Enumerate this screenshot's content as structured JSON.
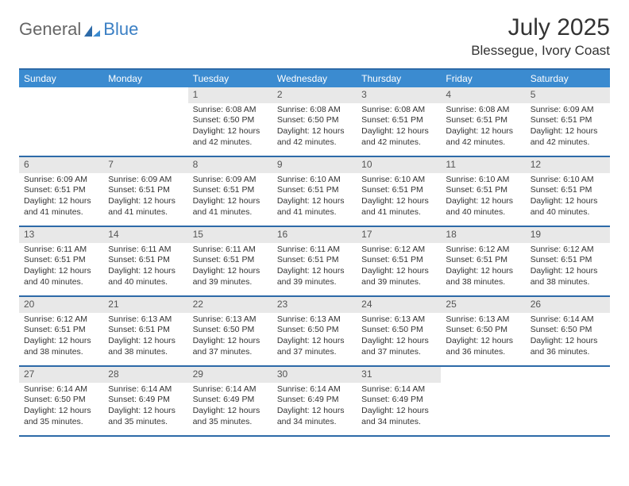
{
  "brand": {
    "part1": "General",
    "part2": "Blue"
  },
  "title": "July 2025",
  "location": "Blessegue, Ivory Coast",
  "colors": {
    "header_bg": "#3b8bd0",
    "border": "#2d6aa8",
    "daynum_bg": "#e8e8e8"
  },
  "day_names": [
    "Sunday",
    "Monday",
    "Tuesday",
    "Wednesday",
    "Thursday",
    "Friday",
    "Saturday"
  ],
  "weeks": [
    [
      null,
      null,
      {
        "d": "1",
        "sr": "Sunrise: 6:08 AM",
        "ss": "Sunset: 6:50 PM",
        "dl": "Daylight: 12 hours and 42 minutes."
      },
      {
        "d": "2",
        "sr": "Sunrise: 6:08 AM",
        "ss": "Sunset: 6:50 PM",
        "dl": "Daylight: 12 hours and 42 minutes."
      },
      {
        "d": "3",
        "sr": "Sunrise: 6:08 AM",
        "ss": "Sunset: 6:51 PM",
        "dl": "Daylight: 12 hours and 42 minutes."
      },
      {
        "d": "4",
        "sr": "Sunrise: 6:08 AM",
        "ss": "Sunset: 6:51 PM",
        "dl": "Daylight: 12 hours and 42 minutes."
      },
      {
        "d": "5",
        "sr": "Sunrise: 6:09 AM",
        "ss": "Sunset: 6:51 PM",
        "dl": "Daylight: 12 hours and 42 minutes."
      }
    ],
    [
      {
        "d": "6",
        "sr": "Sunrise: 6:09 AM",
        "ss": "Sunset: 6:51 PM",
        "dl": "Daylight: 12 hours and 41 minutes."
      },
      {
        "d": "7",
        "sr": "Sunrise: 6:09 AM",
        "ss": "Sunset: 6:51 PM",
        "dl": "Daylight: 12 hours and 41 minutes."
      },
      {
        "d": "8",
        "sr": "Sunrise: 6:09 AM",
        "ss": "Sunset: 6:51 PM",
        "dl": "Daylight: 12 hours and 41 minutes."
      },
      {
        "d": "9",
        "sr": "Sunrise: 6:10 AM",
        "ss": "Sunset: 6:51 PM",
        "dl": "Daylight: 12 hours and 41 minutes."
      },
      {
        "d": "10",
        "sr": "Sunrise: 6:10 AM",
        "ss": "Sunset: 6:51 PM",
        "dl": "Daylight: 12 hours and 41 minutes."
      },
      {
        "d": "11",
        "sr": "Sunrise: 6:10 AM",
        "ss": "Sunset: 6:51 PM",
        "dl": "Daylight: 12 hours and 40 minutes."
      },
      {
        "d": "12",
        "sr": "Sunrise: 6:10 AM",
        "ss": "Sunset: 6:51 PM",
        "dl": "Daylight: 12 hours and 40 minutes."
      }
    ],
    [
      {
        "d": "13",
        "sr": "Sunrise: 6:11 AM",
        "ss": "Sunset: 6:51 PM",
        "dl": "Daylight: 12 hours and 40 minutes."
      },
      {
        "d": "14",
        "sr": "Sunrise: 6:11 AM",
        "ss": "Sunset: 6:51 PM",
        "dl": "Daylight: 12 hours and 40 minutes."
      },
      {
        "d": "15",
        "sr": "Sunrise: 6:11 AM",
        "ss": "Sunset: 6:51 PM",
        "dl": "Daylight: 12 hours and 39 minutes."
      },
      {
        "d": "16",
        "sr": "Sunrise: 6:11 AM",
        "ss": "Sunset: 6:51 PM",
        "dl": "Daylight: 12 hours and 39 minutes."
      },
      {
        "d": "17",
        "sr": "Sunrise: 6:12 AM",
        "ss": "Sunset: 6:51 PM",
        "dl": "Daylight: 12 hours and 39 minutes."
      },
      {
        "d": "18",
        "sr": "Sunrise: 6:12 AM",
        "ss": "Sunset: 6:51 PM",
        "dl": "Daylight: 12 hours and 38 minutes."
      },
      {
        "d": "19",
        "sr": "Sunrise: 6:12 AM",
        "ss": "Sunset: 6:51 PM",
        "dl": "Daylight: 12 hours and 38 minutes."
      }
    ],
    [
      {
        "d": "20",
        "sr": "Sunrise: 6:12 AM",
        "ss": "Sunset: 6:51 PM",
        "dl": "Daylight: 12 hours and 38 minutes."
      },
      {
        "d": "21",
        "sr": "Sunrise: 6:13 AM",
        "ss": "Sunset: 6:51 PM",
        "dl": "Daylight: 12 hours and 38 minutes."
      },
      {
        "d": "22",
        "sr": "Sunrise: 6:13 AM",
        "ss": "Sunset: 6:50 PM",
        "dl": "Daylight: 12 hours and 37 minutes."
      },
      {
        "d": "23",
        "sr": "Sunrise: 6:13 AM",
        "ss": "Sunset: 6:50 PM",
        "dl": "Daylight: 12 hours and 37 minutes."
      },
      {
        "d": "24",
        "sr": "Sunrise: 6:13 AM",
        "ss": "Sunset: 6:50 PM",
        "dl": "Daylight: 12 hours and 37 minutes."
      },
      {
        "d": "25",
        "sr": "Sunrise: 6:13 AM",
        "ss": "Sunset: 6:50 PM",
        "dl": "Daylight: 12 hours and 36 minutes."
      },
      {
        "d": "26",
        "sr": "Sunrise: 6:14 AM",
        "ss": "Sunset: 6:50 PM",
        "dl": "Daylight: 12 hours and 36 minutes."
      }
    ],
    [
      {
        "d": "27",
        "sr": "Sunrise: 6:14 AM",
        "ss": "Sunset: 6:50 PM",
        "dl": "Daylight: 12 hours and 35 minutes."
      },
      {
        "d": "28",
        "sr": "Sunrise: 6:14 AM",
        "ss": "Sunset: 6:49 PM",
        "dl": "Daylight: 12 hours and 35 minutes."
      },
      {
        "d": "29",
        "sr": "Sunrise: 6:14 AM",
        "ss": "Sunset: 6:49 PM",
        "dl": "Daylight: 12 hours and 35 minutes."
      },
      {
        "d": "30",
        "sr": "Sunrise: 6:14 AM",
        "ss": "Sunset: 6:49 PM",
        "dl": "Daylight: 12 hours and 34 minutes."
      },
      {
        "d": "31",
        "sr": "Sunrise: 6:14 AM",
        "ss": "Sunset: 6:49 PM",
        "dl": "Daylight: 12 hours and 34 minutes."
      },
      null,
      null
    ]
  ]
}
